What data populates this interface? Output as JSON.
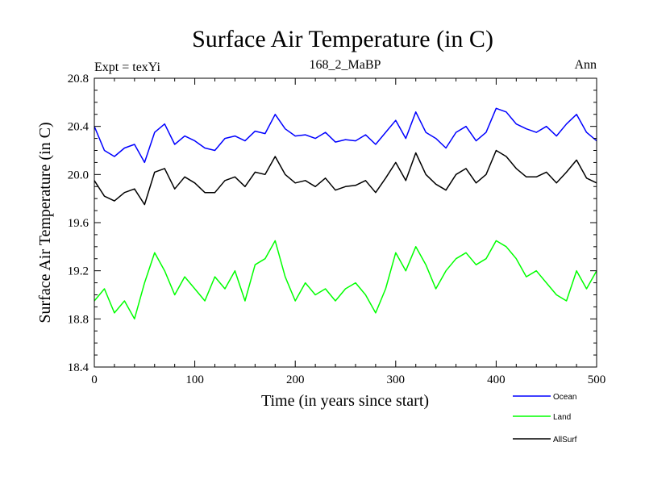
{
  "chart_data": {
    "type": "line",
    "title": "Surface Air Temperature (in C)",
    "subtitle_left": "Expt = texYi",
    "subtitle_center": "168_2_MaBP",
    "subtitle_right": "Ann",
    "xlabel": "Time (in years since start)",
    "ylabel": "Surface Air Temperature (in C)",
    "xlim": [
      0,
      500
    ],
    "ylim": [
      18.4,
      20.8
    ],
    "x_ticks": [
      "0",
      "100",
      "200",
      "300",
      "400",
      "500"
    ],
    "y_ticks": [
      "18.4",
      "18.8",
      "19.2",
      "19.6",
      "20.0",
      "20.4",
      "20.8"
    ],
    "grid": false,
    "legend_position": "bottom-right, outside plot",
    "series": [
      {
        "name": "Ocean",
        "color": "#0000ff",
        "x": [
          0,
          10,
          20,
          30,
          40,
          50,
          60,
          70,
          80,
          90,
          100,
          110,
          120,
          130,
          140,
          150,
          160,
          170,
          180,
          190,
          200,
          210,
          220,
          230,
          240,
          250,
          260,
          270,
          280,
          290,
          300,
          310,
          320,
          330,
          340,
          350,
          360,
          370,
          380,
          390,
          400,
          410,
          420,
          430,
          440,
          450,
          460,
          470,
          480,
          490,
          500
        ],
        "values": [
          20.4,
          20.2,
          20.15,
          20.22,
          20.25,
          20.1,
          20.35,
          20.42,
          20.25,
          20.32,
          20.28,
          20.22,
          20.2,
          20.3,
          20.32,
          20.28,
          20.36,
          20.34,
          20.5,
          20.38,
          20.32,
          20.33,
          20.3,
          20.35,
          20.27,
          20.29,
          20.28,
          20.33,
          20.25,
          20.35,
          20.45,
          20.3,
          20.52,
          20.35,
          20.3,
          20.22,
          20.35,
          20.4,
          20.28,
          20.35,
          20.55,
          20.52,
          20.42,
          20.38,
          20.35,
          20.4,
          20.32,
          20.42,
          20.5,
          20.35,
          20.28
        ]
      },
      {
        "name": "Land",
        "color": "#00ff00",
        "x": [
          0,
          10,
          20,
          30,
          40,
          50,
          60,
          70,
          80,
          90,
          100,
          110,
          120,
          130,
          140,
          150,
          160,
          170,
          180,
          190,
          200,
          210,
          220,
          230,
          240,
          250,
          260,
          270,
          280,
          290,
          300,
          310,
          320,
          330,
          340,
          350,
          360,
          370,
          380,
          390,
          400,
          410,
          420,
          430,
          440,
          450,
          460,
          470,
          480,
          490,
          500
        ],
        "values": [
          18.95,
          19.05,
          18.85,
          18.95,
          18.8,
          19.1,
          19.35,
          19.2,
          19.0,
          19.15,
          19.05,
          18.95,
          19.15,
          19.05,
          19.2,
          18.95,
          19.25,
          19.3,
          19.45,
          19.15,
          18.95,
          19.1,
          19.0,
          19.05,
          18.95,
          19.05,
          19.1,
          19.0,
          18.85,
          19.05,
          19.35,
          19.2,
          19.4,
          19.25,
          19.05,
          19.2,
          19.3,
          19.35,
          19.25,
          19.3,
          19.45,
          19.4,
          19.3,
          19.15,
          19.2,
          19.1,
          19.0,
          18.95,
          19.2,
          19.05,
          19.2
        ]
      },
      {
        "name": "AllSurf",
        "color": "#000000",
        "x": [
          0,
          10,
          20,
          30,
          40,
          50,
          60,
          70,
          80,
          90,
          100,
          110,
          120,
          130,
          140,
          150,
          160,
          170,
          180,
          190,
          200,
          210,
          220,
          230,
          240,
          250,
          260,
          270,
          280,
          290,
          300,
          310,
          320,
          330,
          340,
          350,
          360,
          370,
          380,
          390,
          400,
          410,
          420,
          430,
          440,
          450,
          460,
          470,
          480,
          490,
          500
        ],
        "values": [
          19.95,
          19.82,
          19.78,
          19.85,
          19.88,
          19.75,
          20.02,
          20.05,
          19.88,
          19.98,
          19.93,
          19.85,
          19.85,
          19.95,
          19.98,
          19.9,
          20.02,
          20.0,
          20.15,
          20.0,
          19.93,
          19.95,
          19.9,
          19.97,
          19.87,
          19.9,
          19.91,
          19.95,
          19.85,
          19.97,
          20.1,
          19.95,
          20.18,
          20.0,
          19.92,
          19.87,
          20.0,
          20.05,
          19.93,
          20.0,
          20.2,
          20.15,
          20.05,
          19.98,
          19.98,
          20.02,
          19.93,
          20.02,
          20.12,
          19.97,
          19.93
        ]
      }
    ]
  }
}
